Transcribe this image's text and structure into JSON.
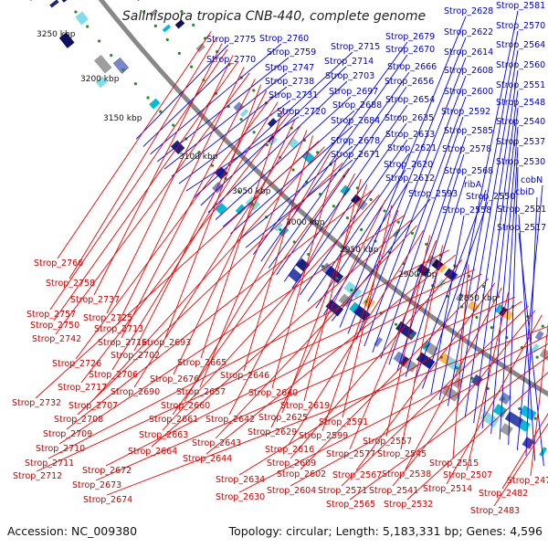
{
  "title": "Salinispora tropica CNB-440, complete genome",
  "accession_text": "Accession: NC_009380",
  "topology_text": "Topology: circular; Length: 5,183,331 bp; Genes: 4,596",
  "colors": {
    "forward": "#0000ee",
    "reverse": "#ee0000",
    "backbone": "#888888",
    "tick_dots": "#2a8a2a",
    "label_text": "#0000cc",
    "reverse_label_text": "#cc0000"
  },
  "scale_labels": [
    "3250 kbp",
    "3200 kbp",
    "3150 kbp",
    "3100 kbp",
    "3050 kbp",
    "3000 kbp",
    "2950 kbp",
    "2900 kbp",
    "2850 kbp"
  ],
  "forward_labels": [
    "Strop_2775",
    "Strop_2770",
    "Strop_2760",
    "Strop_2759",
    "Strop_2747",
    "Strop_2738",
    "Strop_2731",
    "Strop_2720",
    "Strop_2715",
    "Strop_2714",
    "Strop_2703",
    "Strop_2697",
    "Strop_2688",
    "Strop_2684",
    "Strop_2678",
    "Strop_2671",
    "Strop_2679",
    "Strop_2670",
    "Strop_2666",
    "Strop_2656",
    "Strop_2654",
    "Strop_2635",
    "Strop_2633",
    "Strop_2621",
    "Strop_2620",
    "Strop_2612",
    "Strop_2593",
    "Strop_2628",
    "Strop_2622",
    "Strop_2614",
    "Strop_2608",
    "Strop_2600",
    "Strop_2592",
    "Strop_2585",
    "Strop_2578",
    "Strop_2568",
    "ribA",
    "Strop_2550",
    "Strop_2558",
    "Strop_2581",
    "Strop_2570",
    "Strop_2564",
    "Strop_2560",
    "Strop_2551",
    "Strop_2548",
    "Strop_2540",
    "Strop_2537",
    "Strop_2530",
    "cobN",
    "cbiD",
    "Strop_2521",
    "Strop_2517"
  ],
  "reverse_labels": [
    "Strop_2766",
    "Strop_2758",
    "Strop_2737",
    "Strop_2757",
    "Strop_2725",
    "Strop_2750",
    "Strop_2713",
    "Strop_2742",
    "Strop_2716",
    "Strop_2693",
    "Strop_2702",
    "Strop_2726",
    "Strop_2706",
    "Strop_2665",
    "Strop_2717",
    "Strop_2676",
    "Strop_2690",
    "Strop_2657",
    "Strop_2646",
    "Strop_2732",
    "Strop_2707",
    "Strop_2660",
    "Strop_2640",
    "Strop_2708",
    "Strop_2661",
    "Strop_2642",
    "Strop_2619",
    "Strop_2625",
    "Strop_2709",
    "Strop_2663",
    "Strop_2629",
    "Strop_2591",
    "Strop_2599",
    "Strop_2710",
    "Strop_2664",
    "Strop_2643",
    "Strop_2616",
    "Strop_2557",
    "Strop_2577",
    "Strop_2545",
    "Strop_2711",
    "Strop_2644",
    "Strop_2609",
    "Strop_2515",
    "Strop_2712",
    "Strop_2672",
    "Strop_2602",
    "Strop_2567",
    "Strop_2538",
    "Strop_2507",
    "Strop_2673",
    "Strop_2634",
    "Strop_2571",
    "Strop_2541",
    "Strop_2514",
    "Strop_2473",
    "Strop_2674",
    "Strop_2630",
    "Strop_2604",
    "Strop_2565",
    "Strop_2532",
    "Strop_2482",
    "Strop_2483"
  ]
}
